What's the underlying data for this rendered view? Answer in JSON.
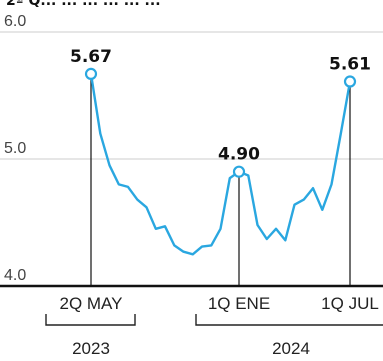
{
  "chart_data": {
    "type": "line",
    "title": "2ª Q... ... ... ... ... ...",
    "ylim": [
      4.0,
      6.0
    ],
    "y_ticks": [
      "4.0",
      "5.0",
      "6.0"
    ],
    "grid": true,
    "series_color": "#2aa7e0",
    "series": [
      {
        "values": [
          5.67,
          5.2,
          4.95,
          4.8,
          4.78,
          4.68,
          4.62,
          4.45,
          4.47,
          4.32,
          4.27,
          4.25,
          4.31,
          4.32,
          4.45,
          4.85,
          4.9,
          4.87,
          4.48,
          4.37,
          4.45,
          4.36,
          4.64,
          4.68,
          4.77,
          4.6,
          4.8,
          5.2,
          5.61
        ]
      }
    ],
    "highlighted_points": [
      {
        "index": 0,
        "label": "5.67"
      },
      {
        "index": 16,
        "label": "4.90"
      },
      {
        "index": 28,
        "label": "5.61"
      }
    ],
    "x_labels": [
      {
        "index": 0,
        "label": "2Q MAY"
      },
      {
        "index": 16,
        "label": "1Q ENE"
      },
      {
        "index": 28,
        "label": "1Q JUL"
      }
    ],
    "years": [
      "2023",
      "2024"
    ]
  }
}
